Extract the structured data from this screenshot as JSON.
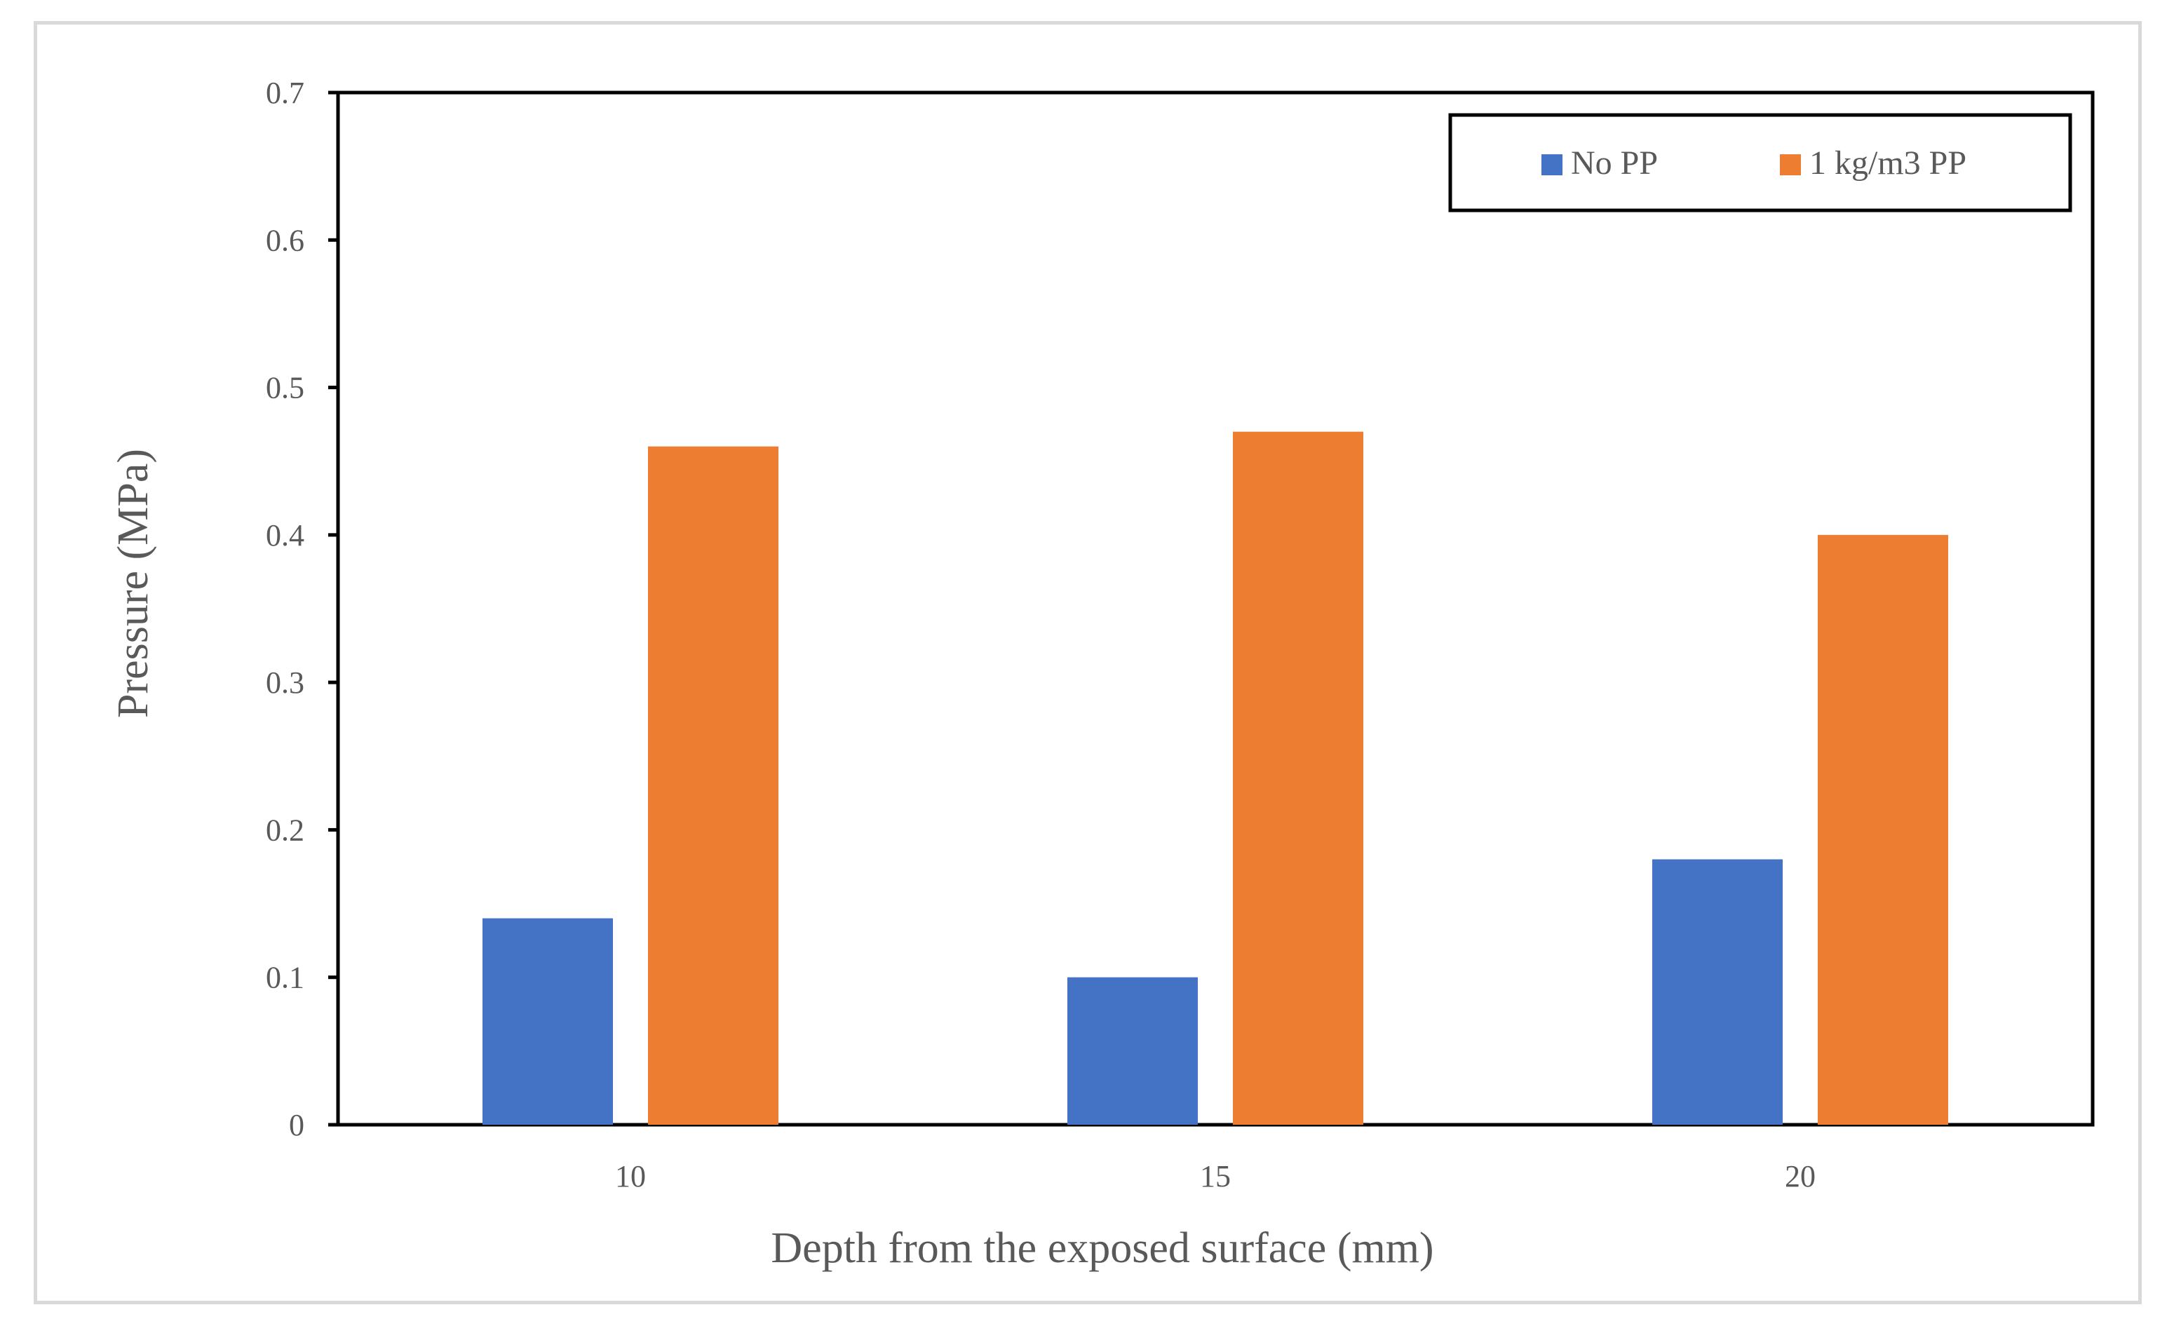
{
  "chart_data": {
    "type": "bar",
    "title": "",
    "xlabel": "Depth from the exposed surface (mm)",
    "ylabel": "Pressure (MPa)",
    "categories": [
      "10",
      "15",
      "20"
    ],
    "series": [
      {
        "name": "No PP",
        "color": "#4472C4",
        "values": [
          0.14,
          0.1,
          0.18
        ]
      },
      {
        "name": "1 kg/m3 PP",
        "color": "#ED7D31",
        "values": [
          0.46,
          0.47,
          0.4
        ]
      }
    ],
    "ylim": [
      0,
      0.7
    ],
    "yticks": [
      "0",
      "0.1",
      "0.2",
      "0.3",
      "0.4",
      "0.5",
      "0.6",
      "0.7"
    ],
    "grid": false,
    "legend_position": "top-right"
  }
}
